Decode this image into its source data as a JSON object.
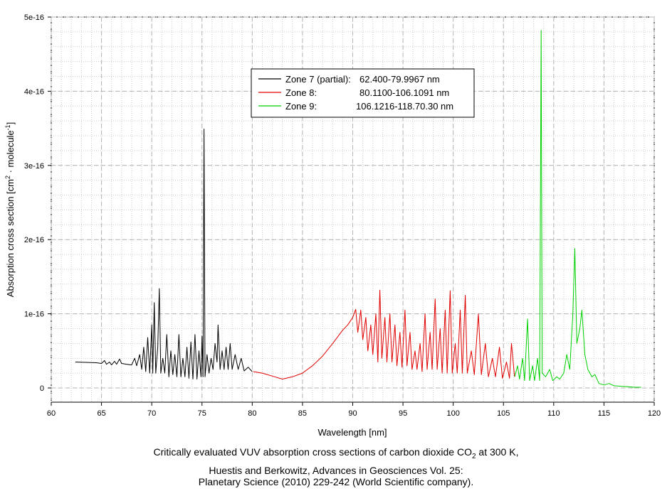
{
  "chart_data": {
    "type": "line",
    "xlabel": "Wavelength [nm]",
    "ylabel": {
      "main": "Absorption cross section [cm",
      "sup1": "2",
      "mid": " · molecule",
      "sup2": "-1",
      "end": "]"
    },
    "xlim": [
      60,
      120
    ],
    "ylim": [
      0,
      5e-16
    ],
    "x_ticks": [
      60,
      65,
      70,
      75,
      80,
      85,
      90,
      95,
      100,
      105,
      110,
      115,
      120
    ],
    "x_tick_labels": [
      "60",
      "65",
      "70",
      "75",
      "80",
      "85",
      "90",
      "95",
      "100",
      "105",
      "110",
      "115",
      "120"
    ],
    "y_ticks": [
      0,
      1e-16,
      2e-16,
      3e-16,
      4e-16,
      5e-16
    ],
    "y_tick_labels": [
      "0",
      "1e-16",
      "2e-16",
      "3e-16",
      "4e-16",
      "5e-16"
    ],
    "grid": true,
    "legend_position": "top-center",
    "series": [
      {
        "name": "Zone 7 (partial): 62.400-79.9967 nm",
        "label_name": "Zone 7 (partial):",
        "label_range": "62.400-79.9967 nm",
        "color": "#000000",
        "points": [
          [
            62.4,
            3.5e-17
          ],
          [
            63.5,
            3.45e-17
          ],
          [
            64.5,
            3.4e-17
          ],
          [
            65.0,
            3.3e-17
          ],
          [
            65.3,
            3.7e-17
          ],
          [
            65.5,
            3.2e-17
          ],
          [
            65.8,
            3.5e-17
          ],
          [
            66.0,
            3.1e-17
          ],
          [
            66.3,
            3.6e-17
          ],
          [
            66.5,
            3.2e-17
          ],
          [
            66.8,
            3.9e-17
          ],
          [
            67.0,
            3.3e-17
          ],
          [
            67.5,
            3.2e-17
          ],
          [
            68.0,
            3.1e-17
          ],
          [
            68.3,
            4e-17
          ],
          [
            68.5,
            3e-17
          ],
          [
            68.8,
            4.5e-17
          ],
          [
            69.0,
            2.5e-17
          ],
          [
            69.2,
            5.5e-17
          ],
          [
            69.4,
            2.2e-17
          ],
          [
            69.6,
            6.8e-17
          ],
          [
            69.8,
            2e-17
          ],
          [
            70.0,
            8.5e-17
          ],
          [
            70.1,
            2e-17
          ],
          [
            70.25,
            1.15e-16
          ],
          [
            70.4,
            2e-17
          ],
          [
            70.6,
            5.5e-17
          ],
          [
            70.75,
            1.34e-16
          ],
          [
            70.9,
            2e-17
          ],
          [
            71.1,
            4e-17
          ],
          [
            71.3,
            2e-17
          ],
          [
            71.5,
            7.2e-17
          ],
          [
            71.7,
            1.5e-17
          ],
          [
            71.9,
            5e-17
          ],
          [
            72.1,
            1.8e-17
          ],
          [
            72.3,
            4.5e-17
          ],
          [
            72.5,
            1.5e-17
          ],
          [
            72.7,
            7.2e-17
          ],
          [
            72.9,
            1.5e-17
          ],
          [
            73.1,
            4e-17
          ],
          [
            73.3,
            1.5e-17
          ],
          [
            73.5,
            5.5e-17
          ],
          [
            73.7,
            1.3e-17
          ],
          [
            73.9,
            6.2e-17
          ],
          [
            74.1,
            1.2e-17
          ],
          [
            74.3,
            7.2e-17
          ],
          [
            74.5,
            1.2e-17
          ],
          [
            74.7,
            5e-17
          ],
          [
            74.9,
            1.5e-17
          ],
          [
            75.0,
            7e-17
          ],
          [
            75.1,
            1.5e-17
          ],
          [
            75.2,
            3.49e-16
          ],
          [
            75.3,
            1.5e-17
          ],
          [
            75.5,
            4.5e-17
          ],
          [
            75.7,
            2e-17
          ],
          [
            75.9,
            4e-17
          ],
          [
            76.1,
            2.5e-17
          ],
          [
            76.3,
            6e-17
          ],
          [
            76.5,
            3.5e-17
          ],
          [
            76.6,
            8.5e-17
          ],
          [
            76.8,
            2.5e-17
          ],
          [
            77.0,
            5e-17
          ],
          [
            77.2,
            2.5e-17
          ],
          [
            77.4,
            5.5e-17
          ],
          [
            77.6,
            2.5e-17
          ],
          [
            77.8,
            6e-17
          ],
          [
            78.0,
            2.5e-17
          ],
          [
            78.3,
            4.5e-17
          ],
          [
            78.6,
            2.5e-17
          ],
          [
            78.9,
            4e-17
          ],
          [
            79.2,
            2.3e-17
          ],
          [
            79.6,
            2.8e-17
          ],
          [
            80.0,
            2.2e-17
          ]
        ]
      },
      {
        "name": "Zone 8: 80.1100-106.1091 nm",
        "label_name": "Zone 8:",
        "label_range": "80.1100-106.1091 nm",
        "color": "#e00000",
        "points": [
          [
            80.1,
            2.2e-17
          ],
          [
            81,
            2e-17
          ],
          [
            82,
            1.6e-17
          ],
          [
            83,
            1.2e-17
          ],
          [
            84,
            1.5e-17
          ],
          [
            85,
            2e-17
          ],
          [
            86,
            3e-17
          ],
          [
            87,
            4.3e-17
          ],
          [
            88,
            6e-17
          ],
          [
            89,
            7.8e-17
          ],
          [
            89.5,
            8.5e-17
          ],
          [
            90,
            9.5e-17
          ],
          [
            90.3,
            1.06e-16
          ],
          [
            90.5,
            7.5e-17
          ],
          [
            90.8,
            1.05e-16
          ],
          [
            91.0,
            6.5e-17
          ],
          [
            91.3,
            9.5e-17
          ],
          [
            91.5,
            5e-17
          ],
          [
            91.8,
            8.5e-17
          ],
          [
            92.0,
            4.5e-17
          ],
          [
            92.3,
            1e-16
          ],
          [
            92.5,
            3.5e-17
          ],
          [
            92.7,
            1.32e-16
          ],
          [
            92.9,
            4e-17
          ],
          [
            93.2,
            9.5e-17
          ],
          [
            93.4,
            3.5e-17
          ],
          [
            93.7,
            1e-16
          ],
          [
            93.9,
            3.5e-17
          ],
          [
            94.2,
            8.5e-17
          ],
          [
            94.4,
            3e-17
          ],
          [
            94.7,
            7.5e-17
          ],
          [
            94.9,
            2.8e-17
          ],
          [
            95.2,
            1.05e-16
          ],
          [
            95.4,
            3e-17
          ],
          [
            95.7,
            7.5e-17
          ],
          [
            95.9,
            2.5e-17
          ],
          [
            96.2,
            5e-17
          ],
          [
            96.4,
            2.5e-17
          ],
          [
            96.7,
            6e-17
          ],
          [
            96.9,
            2.2e-17
          ],
          [
            97.2,
            1e-16
          ],
          [
            97.4,
            2.5e-17
          ],
          [
            97.7,
            7.5e-17
          ],
          [
            97.9,
            2.5e-17
          ],
          [
            98.2,
            1.2e-16
          ],
          [
            98.4,
            2.5e-17
          ],
          [
            98.7,
            8e-17
          ],
          [
            98.9,
            2e-17
          ],
          [
            99.2,
            1.05e-16
          ],
          [
            99.4,
            2e-17
          ],
          [
            99.7,
            1.31e-16
          ],
          [
            99.9,
            2e-17
          ],
          [
            100.2,
            6e-17
          ],
          [
            100.4,
            2e-17
          ],
          [
            100.7,
            1.05e-16
          ],
          [
            100.9,
            2e-17
          ],
          [
            101.2,
            1.25e-16
          ],
          [
            101.4,
            2e-17
          ],
          [
            101.8,
            5e-17
          ],
          [
            102.1,
            1.8e-17
          ],
          [
            102.5,
            1e-16
          ],
          [
            102.8,
            1.8e-17
          ],
          [
            103.2,
            6e-17
          ],
          [
            103.5,
            1.5e-17
          ],
          [
            103.9,
            4e-17
          ],
          [
            104.2,
            1.5e-17
          ],
          [
            104.6,
            5.5e-17
          ],
          [
            104.9,
            1.3e-17
          ],
          [
            105.3,
            3.5e-17
          ],
          [
            105.6,
            1.3e-17
          ],
          [
            105.8,
            6e-17
          ],
          [
            106.1,
            1.5e-17
          ]
        ]
      },
      {
        "name": "Zone 9: 106.1216-118.70.30 nm",
        "label_name": "Zone 9:",
        "label_range": "106.1216-118.70.30 nm",
        "color": "#00d000",
        "points": [
          [
            106.12,
            1.5e-17
          ],
          [
            106.4,
            3e-17
          ],
          [
            106.6,
            1.2e-17
          ],
          [
            106.9,
            4e-17
          ],
          [
            107.1,
            1e-17
          ],
          [
            107.4,
            9.3e-17
          ],
          [
            107.6,
            1e-17
          ],
          [
            107.9,
            3e-17
          ],
          [
            108.1,
            1e-17
          ],
          [
            108.4,
            4e-17
          ],
          [
            108.6,
            1e-17
          ],
          [
            108.75,
            4.82e-16
          ],
          [
            108.85,
            2e-17
          ],
          [
            109.2,
            1.5e-17
          ],
          [
            109.6,
            2.5e-17
          ],
          [
            109.9,
            1e-17
          ],
          [
            110.3,
            1.5e-17
          ],
          [
            110.6,
            1.2e-17
          ],
          [
            111.0,
            2e-17
          ],
          [
            111.3,
            4.5e-17
          ],
          [
            111.6,
            2.5e-17
          ],
          [
            111.9,
            1e-16
          ],
          [
            112.1,
            1.88e-16
          ],
          [
            112.3,
            6e-17
          ],
          [
            112.6,
            8e-17
          ],
          [
            112.8,
            1.05e-16
          ],
          [
            113.1,
            4.5e-17
          ],
          [
            113.4,
            2.5e-17
          ],
          [
            113.8,
            1.5e-17
          ],
          [
            114.1,
            1.8e-17
          ],
          [
            114.5,
            6e-18
          ],
          [
            115.0,
            4e-18
          ],
          [
            115.5,
            6e-18
          ],
          [
            116.0,
            3e-18
          ],
          [
            117.0,
            2e-18
          ],
          [
            118.0,
            1e-18
          ],
          [
            118.7,
            1e-18
          ]
        ]
      }
    ]
  },
  "caption": {
    "line1_before": "Critically evaluated VUV absorption cross sections of carbon dioxide CO",
    "line1_sub": "2",
    "line1_after": " at 300 K,",
    "line2": "Huestis and Berkowitz, Advances in Geosciences Vol. 25:",
    "line3": "Planetary Science (2010) 229-242 (World Scientific company)."
  }
}
